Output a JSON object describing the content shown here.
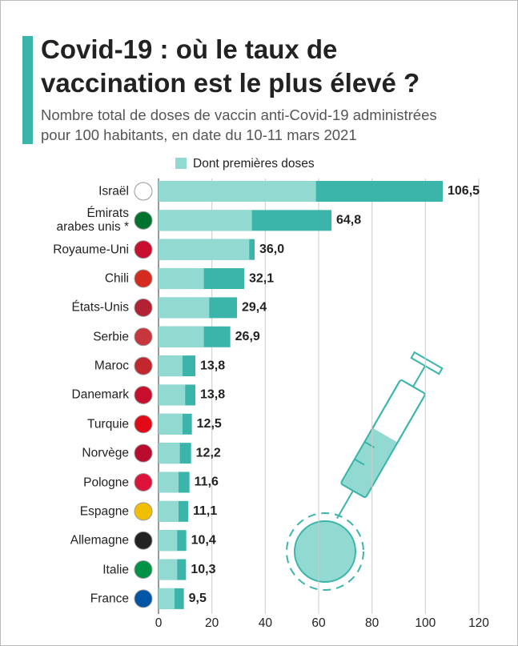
{
  "chart_data": {
    "type": "bar",
    "title": "Covid-19 : où le taux de\nvaccination est le plus élevé ?",
    "subtitle": "Nombre total de doses de vaccin anti-Covid-19 administrées\npour 100 habitants, en date du 10-11 mars 2021",
    "categories": [
      "Israël",
      "Émirats\narabes unis *",
      "Royaume-Uni",
      "Chili",
      "États-Unis",
      "Serbie",
      "Maroc",
      "Danemark",
      "Turquie",
      "Norvège",
      "Pologne",
      "Espagne",
      "Allemagne",
      "Italie",
      "France"
    ],
    "series": [
      {
        "color": "#3bb5aa",
        "values": [
          106.5,
          64.8,
          36.0,
          32.1,
          29.4,
          26.9,
          13.8,
          13.8,
          12.5,
          12.2,
          11.6,
          11.1,
          10.4,
          10.3,
          9.5
        ],
        "value_labels": [
          "106,5",
          "64,8",
          "36,0",
          "32,1",
          "29,4",
          "26,9",
          "13,8",
          "13,8",
          "12,5",
          "12,2",
          "11,6",
          "11,1",
          "10,4",
          "10,3",
          "9,5"
        ]
      },
      {
        "name": "Dont premières doses",
        "color": "#92d9d1",
        "values": [
          59,
          35,
          34,
          17,
          19,
          17,
          9,
          10,
          9,
          8,
          7.5,
          7.5,
          7,
          7,
          6
        ]
      }
    ],
    "xlim": [
      0,
      120
    ],
    "xticks": [
      0,
      20,
      40,
      60,
      80,
      100,
      120
    ],
    "grid": true,
    "horizontal": true
  }
}
